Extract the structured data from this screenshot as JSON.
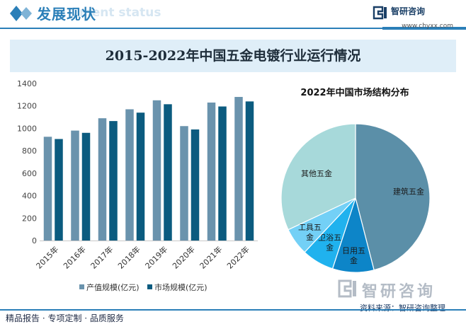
{
  "header": {
    "title": "发展现状",
    "title_watermark": "ment status",
    "brand_name": "智研咨询",
    "brand_url": "www.chyxx.com"
  },
  "banner": {
    "title": "2015-2022年中国五金电镀行业运行情况"
  },
  "colors": {
    "accent": "#2b7fb8",
    "banner_bg": "#dfeef8",
    "series_production": "#6a93ad",
    "series_market": "#0b5b7f"
  },
  "chart_data": [
    {
      "type": "bar",
      "title": "",
      "categories": [
        "2015年",
        "2016年",
        "2017年",
        "2018年",
        "2019年",
        "2020年",
        "2021年",
        "2022年"
      ],
      "series": [
        {
          "name": "产值规模(亿元)",
          "values": [
            925,
            980,
            1090,
            1170,
            1250,
            1020,
            1230,
            1280
          ]
        },
        {
          "name": "市场规模(亿元)",
          "values": [
            905,
            960,
            1065,
            1140,
            1215,
            990,
            1195,
            1240
          ]
        }
      ],
      "ylim": [
        0,
        1400
      ],
      "yticks": [
        0,
        200,
        400,
        600,
        800,
        1000,
        1200,
        1400
      ],
      "grid": false,
      "legend": "bottom",
      "xlabel": "",
      "ylabel": ""
    },
    {
      "type": "pie",
      "title": "2022年中国市场结构分布",
      "slices": [
        {
          "label": "建筑五金",
          "value": 46,
          "color": "#5b8fa8"
        },
        {
          "label": "日用五金",
          "value": 9,
          "color": "#0d85c8"
        },
        {
          "label": "卫浴五金",
          "value": 7,
          "color": "#20b2ee"
        },
        {
          "label": "工具五金",
          "value": 6,
          "color": "#73d0f6"
        },
        {
          "label": "其他五金",
          "value": 32,
          "color": "#a7d9da"
        }
      ],
      "legend": "none"
    }
  ],
  "watermark": {
    "text": "智研咨询"
  },
  "source": {
    "text": "资料来源：智研咨询整理"
  },
  "footer": {
    "text": "精品报告 · 专项定制 · 品质服务"
  }
}
